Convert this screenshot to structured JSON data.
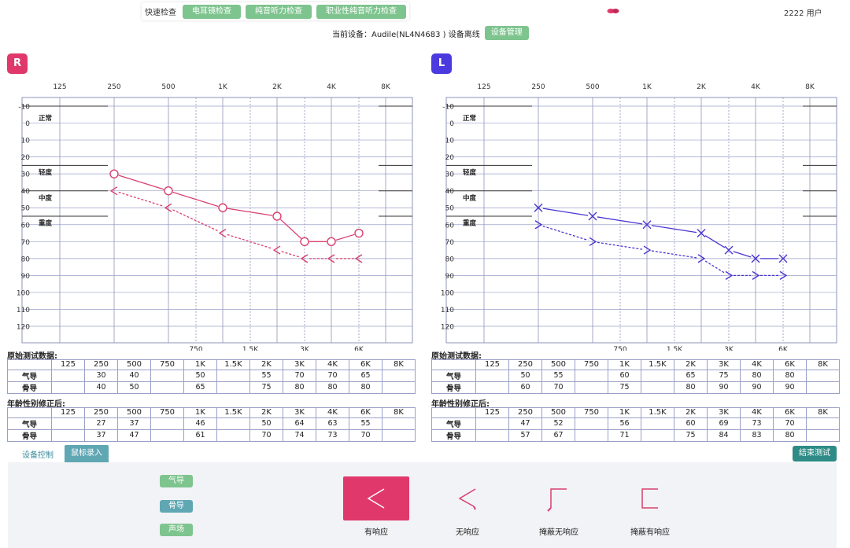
{
  "topbar": {
    "quick_label": "快速检查",
    "buttons": [
      "电耳镜检查",
      "纯音听力检查",
      "职业性纯音听力检查"
    ],
    "user": "2222 用户",
    "device_status": "当前设备：Audile(NL4N4683 ) 设备离线",
    "device_manage": "设备管理"
  },
  "ears": {
    "right": "R",
    "left": "L"
  },
  "chart_data": [
    {
      "type": "line",
      "ear": "R",
      "x_top_ticks": [
        "125",
        "250",
        "500",
        "1K",
        "2K",
        "4K",
        "8K"
      ],
      "x_bottom_ticks": [
        "750",
        "1.5K",
        "3K",
        "6K"
      ],
      "y_ticks": [
        "-10",
        "0",
        "10",
        "20",
        "30",
        "40",
        "50",
        "60",
        "70",
        "80",
        "90",
        "100",
        "110",
        "120"
      ],
      "ylim": [
        -10,
        120
      ],
      "bands": [
        "正常",
        "轻度",
        "中度",
        "重度"
      ],
      "series": [
        {
          "kind": "air",
          "marker": "circle",
          "x": [
            "250",
            "500",
            "1K",
            "2K",
            "3K",
            "4K",
            "6K"
          ],
          "values": [
            30,
            40,
            50,
            55,
            70,
            70,
            65
          ]
        },
        {
          "kind": "bone",
          "marker": "lt",
          "x": [
            "250",
            "500",
            "1K",
            "2K",
            "3K",
            "4K",
            "6K"
          ],
          "values": [
            40,
            50,
            65,
            75,
            80,
            80,
            80
          ]
        }
      ]
    },
    {
      "type": "line",
      "ear": "L",
      "x_top_ticks": [
        "125",
        "250",
        "500",
        "1K",
        "2K",
        "4K",
        "8K"
      ],
      "x_bottom_ticks": [
        "750",
        "1.5K",
        "3K",
        "6K"
      ],
      "y_ticks": [
        "-10",
        "0",
        "10",
        "20",
        "30",
        "40",
        "50",
        "60",
        "70",
        "80",
        "90",
        "100",
        "110",
        "120"
      ],
      "ylim": [
        -10,
        120
      ],
      "bands": [
        "正常",
        "轻度",
        "中度",
        "重度"
      ],
      "series": [
        {
          "kind": "air",
          "marker": "x",
          "x": [
            "250",
            "500",
            "1K",
            "2K",
            "3K",
            "4K",
            "6K"
          ],
          "values": [
            50,
            55,
            60,
            65,
            75,
            80,
            80
          ]
        },
        {
          "kind": "bone",
          "marker": "gt",
          "x": [
            "250",
            "500",
            "1K",
            "2K",
            "3K",
            "4K",
            "6K"
          ],
          "values": [
            60,
            70,
            75,
            80,
            90,
            90,
            90
          ]
        }
      ]
    }
  ],
  "colors": {
    "right": "#d9406f",
    "left": "#4a35d0",
    "green": "#7ec48e",
    "teal": "#5fa7b3"
  },
  "tables": {
    "raw_title": "原始测试数据:",
    "corr_title": "年龄性别修正后:",
    "header": [
      "",
      "125",
      "250",
      "500",
      "750",
      "1K",
      "1.5K",
      "2K",
      "3K",
      "4K",
      "6K",
      "8K"
    ],
    "row_air": "气导",
    "row_bone": "骨导",
    "right_raw": [
      [
        "气导",
        "",
        "30",
        "40",
        "",
        "50",
        "",
        "55",
        "70",
        "70",
        "65",
        ""
      ],
      [
        "骨导",
        "",
        "40",
        "50",
        "",
        "65",
        "",
        "75",
        "80",
        "80",
        "80",
        ""
      ]
    ],
    "right_corr": [
      [
        "气导",
        "",
        "27",
        "37",
        "",
        "46",
        "",
        "50",
        "64",
        "63",
        "55",
        ""
      ],
      [
        "骨导",
        "",
        "37",
        "47",
        "",
        "61",
        "",
        "70",
        "74",
        "73",
        "70",
        ""
      ]
    ],
    "left_raw": [
      [
        "气导",
        "",
        "50",
        "55",
        "",
        "60",
        "",
        "65",
        "75",
        "80",
        "80",
        ""
      ],
      [
        "骨导",
        "",
        "60",
        "70",
        "",
        "75",
        "",
        "80",
        "90",
        "90",
        "90",
        ""
      ]
    ],
    "left_corr": [
      [
        "气导",
        "",
        "47",
        "52",
        "",
        "56",
        "",
        "60",
        "69",
        "73",
        "70",
        ""
      ],
      [
        "骨导",
        "",
        "57",
        "67",
        "",
        "71",
        "",
        "75",
        "84",
        "83",
        "80",
        ""
      ]
    ]
  },
  "bottom": {
    "tab_device": "设备控制",
    "tab_mouse": "鼠标录入",
    "end_test": "结束测试",
    "modes": [
      "气导",
      "骨导",
      "声场"
    ],
    "symbols": [
      "有响应",
      "无响应",
      "掩蔽无响应",
      "掩蔽有响应"
    ]
  }
}
